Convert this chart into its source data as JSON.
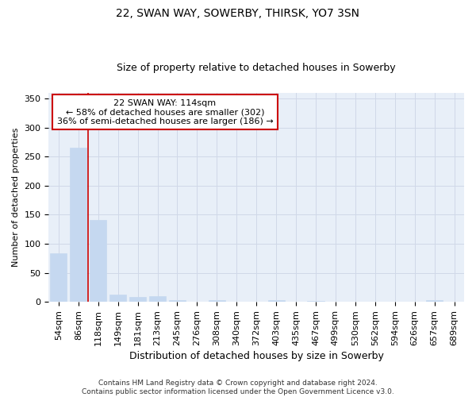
{
  "title1": "22, SWAN WAY, SOWERBY, THIRSK, YO7 3SN",
  "title2": "Size of property relative to detached houses in Sowerby",
  "xlabel": "Distribution of detached houses by size in Sowerby",
  "ylabel": "Number of detached properties",
  "categories": [
    "54sqm",
    "86sqm",
    "118sqm",
    "149sqm",
    "181sqm",
    "213sqm",
    "245sqm",
    "276sqm",
    "308sqm",
    "340sqm",
    "372sqm",
    "403sqm",
    "435sqm",
    "467sqm",
    "499sqm",
    "530sqm",
    "562sqm",
    "594sqm",
    "626sqm",
    "657sqm",
    "689sqm"
  ],
  "values": [
    83,
    265,
    141,
    13,
    9,
    10,
    3,
    0,
    3,
    0,
    0,
    3,
    0,
    2,
    0,
    0,
    0,
    0,
    0,
    3,
    0
  ],
  "bar_color": "#c5d8f0",
  "bar_edge_color": "#c5d8f0",
  "red_line_color": "#cc0000",
  "grid_color": "#d0d8e8",
  "background_color": "#e8eff8",
  "ylim": [
    0,
    360
  ],
  "yticks": [
    0,
    50,
    100,
    150,
    200,
    250,
    300,
    350
  ],
  "annotation_line1": "22 SWAN WAY: 114sqm",
  "annotation_line2": "← 58% of detached houses are smaller (302)",
  "annotation_line3": "36% of semi-detached houses are larger (186) →",
  "annotation_box_color": "white",
  "annotation_box_edge_color": "#cc0000",
  "footer1": "Contains HM Land Registry data © Crown copyright and database right 2024.",
  "footer2": "Contains public sector information licensed under the Open Government Licence v3.0.",
  "title1_fontsize": 10,
  "title2_fontsize": 9,
  "ylabel_fontsize": 8,
  "xlabel_fontsize": 9,
  "tick_fontsize": 8,
  "footer_fontsize": 6.5
}
